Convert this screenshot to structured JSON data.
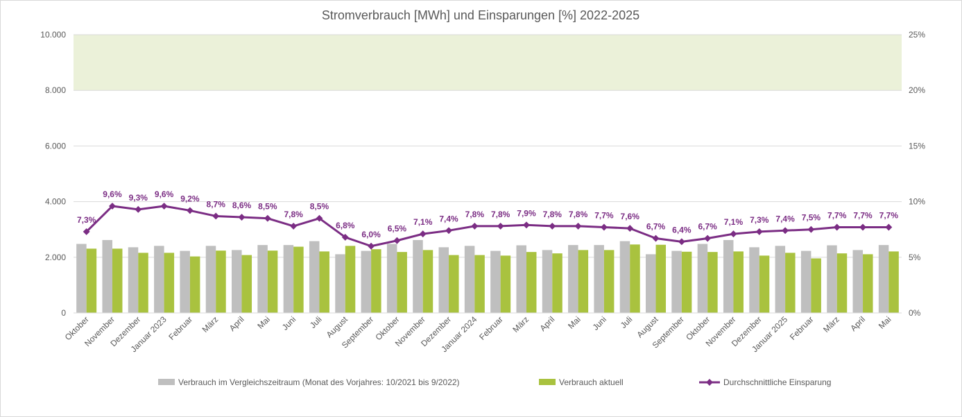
{
  "chart_data": {
    "type": "bar",
    "title": "Stromverbrauch [MWh] und Einsparungen [%] 2022-2025",
    "categories": [
      "Oktober",
      "November",
      "Dezember",
      "Januar 2023",
      "Februar",
      "März",
      "April",
      "Mai",
      "Juni",
      "Juli",
      "August",
      "September",
      "Oktober",
      "November",
      "Dezember",
      "Januar 2024",
      "Februar",
      "März",
      "April",
      "Mai",
      "Juni",
      "Juli",
      "August",
      "September",
      "Oktober",
      "November",
      "Dezember",
      "Januar 2025",
      "Februar",
      "März",
      "April",
      "Mai"
    ],
    "y_left": {
      "min": 0,
      "max": 10000,
      "ticks": [
        0,
        2000,
        4000,
        6000,
        8000,
        10000
      ],
      "tick_labels": [
        "0",
        "2.000",
        "4.000",
        "6.000",
        "8.000",
        "10.000"
      ]
    },
    "y_right": {
      "min": 0,
      "max": 25,
      "ticks": [
        0,
        5,
        10,
        15,
        20,
        25
      ],
      "tick_labels": [
        "0%",
        "5%",
        "10%",
        "15%",
        "20%",
        "25%"
      ]
    },
    "target_band": {
      "from": 8000,
      "to": 10000,
      "color": "#ebf1d9"
    },
    "grid": true,
    "legend_position": "bottom",
    "series": [
      {
        "name": "Verbrauch im Vergleichszeitraum (Monat des Vorjahres: 10/2021 bis 9/2022)",
        "type": "bar",
        "axis": "left",
        "color": "#bfbfbf",
        "values": [
          2480,
          2620,
          2360,
          2410,
          2230,
          2410,
          2260,
          2440,
          2440,
          2580,
          2110,
          2230,
          2480,
          2620,
          2360,
          2410,
          2230,
          2430,
          2260,
          2440,
          2440,
          2580,
          2110,
          2230,
          2480,
          2620,
          2360,
          2410,
          2230,
          2430,
          2260,
          2440
        ]
      },
      {
        "name": "Verbrauch aktuell",
        "type": "bar",
        "axis": "left",
        "color": "#a9c23f",
        "values": [
          2310,
          2310,
          2160,
          2160,
          2030,
          2240,
          2080,
          2240,
          2380,
          2210,
          2410,
          2290,
          2190,
          2260,
          2080,
          2080,
          2060,
          2190,
          2140,
          2260,
          2260,
          2460,
          2450,
          2200,
          2190,
          2210,
          2060,
          2160,
          1960,
          2140,
          2110,
          2210
        ]
      },
      {
        "name": "Durchschnittliche Einsparung",
        "type": "line",
        "axis": "right",
        "color": "#7b2d84",
        "values": [
          7.3,
          9.6,
          9.3,
          9.6,
          9.2,
          8.7,
          8.6,
          8.5,
          7.8,
          8.5,
          6.8,
          6.0,
          6.5,
          7.1,
          7.4,
          7.8,
          7.8,
          7.9,
          7.8,
          7.8,
          7.7,
          7.6,
          6.7,
          6.4,
          6.7,
          7.1,
          7.3,
          7.4,
          7.5,
          7.7,
          7.7,
          7.7
        ],
        "labels": [
          "7,3%",
          "9,6%",
          "9,3%",
          "9,6%",
          "9,2%",
          "8,7%",
          "8,6%",
          "8,5%",
          "7,8%",
          "8,5%",
          "6,8%",
          "6,0%",
          "6,5%",
          "7,1%",
          "7,4%",
          "7,8%",
          "7,8%",
          "7,9%",
          "7,8%",
          "7,8%",
          "7,7%",
          "7,6%",
          "6,7%",
          "6,4%",
          "6,7%",
          "7,1%",
          "7,3%",
          "7,4%",
          "7,5%",
          "7,7%",
          "7,7%",
          "7,7%"
        ]
      }
    ]
  }
}
